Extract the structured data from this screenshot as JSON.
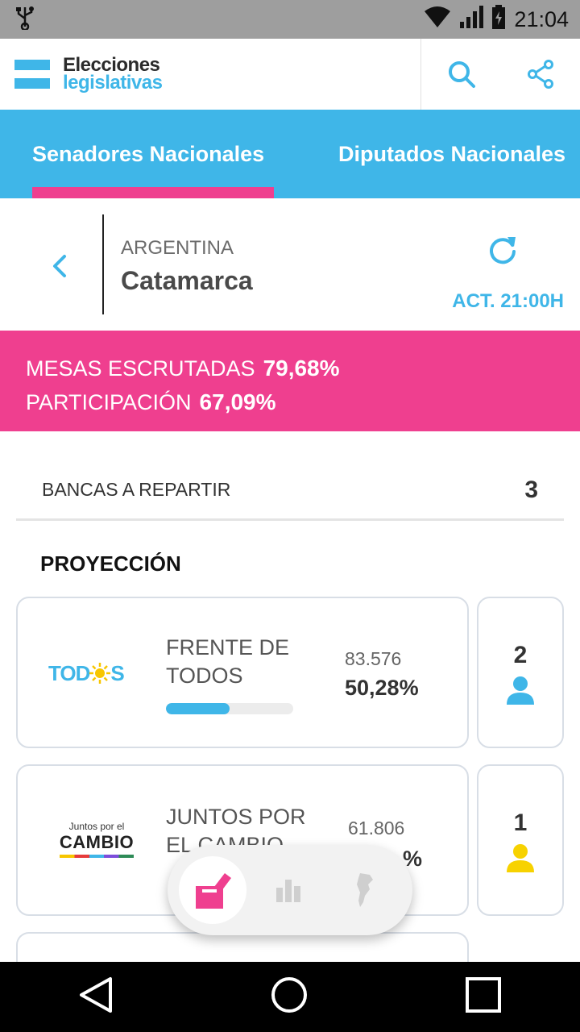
{
  "status_bar": {
    "time": "21:04",
    "icons": [
      "usb-icon",
      "wifi-icon",
      "signal-icon",
      "battery-charging-icon"
    ]
  },
  "header": {
    "logo_line1": "Elecciones",
    "logo_line2": "legislativas",
    "actions": [
      "search-icon",
      "share-icon"
    ]
  },
  "tabs": [
    {
      "label": "Senadores Nacionales",
      "active": true
    },
    {
      "label": "Diputados Nacionales",
      "active": false
    }
  ],
  "location": {
    "country": "ARGENTINA",
    "province": "Catamarca",
    "update_label": "ACT. 21:00H"
  },
  "banner": {
    "mesas_label": "MESAS ESCRUTADAS",
    "mesas_value": "79,68%",
    "participacion_label": "PARTICIPACIÓN",
    "participacion_value": "67,09%"
  },
  "bancas": {
    "label": "BANCAS A REPARTIR",
    "value": "3"
  },
  "proyeccion_title": "PROYECCIÓN",
  "parties": [
    {
      "logo_text": "TOD S",
      "name_line1": "FRENTE DE",
      "name_line2": "TODOS",
      "votes": "83.576",
      "percent": "50,28%",
      "percent_value": 50.28,
      "seats": "2",
      "color": "#3fb6e8"
    },
    {
      "logo_top": "Juntos por el",
      "logo_main": "CAMBIO",
      "name_line1": "JUNTOS POR",
      "name_line2": "EL CAMBIO",
      "votes": "61.806",
      "percent": "%",
      "seats": "1",
      "color": "#f7d200"
    }
  ],
  "float_nav": [
    "ballot-box-icon",
    "bar-chart-icon",
    "argentina-map-icon"
  ],
  "colors": {
    "accent_blue": "#3fb6e8",
    "accent_pink": "#ef3f8f"
  }
}
